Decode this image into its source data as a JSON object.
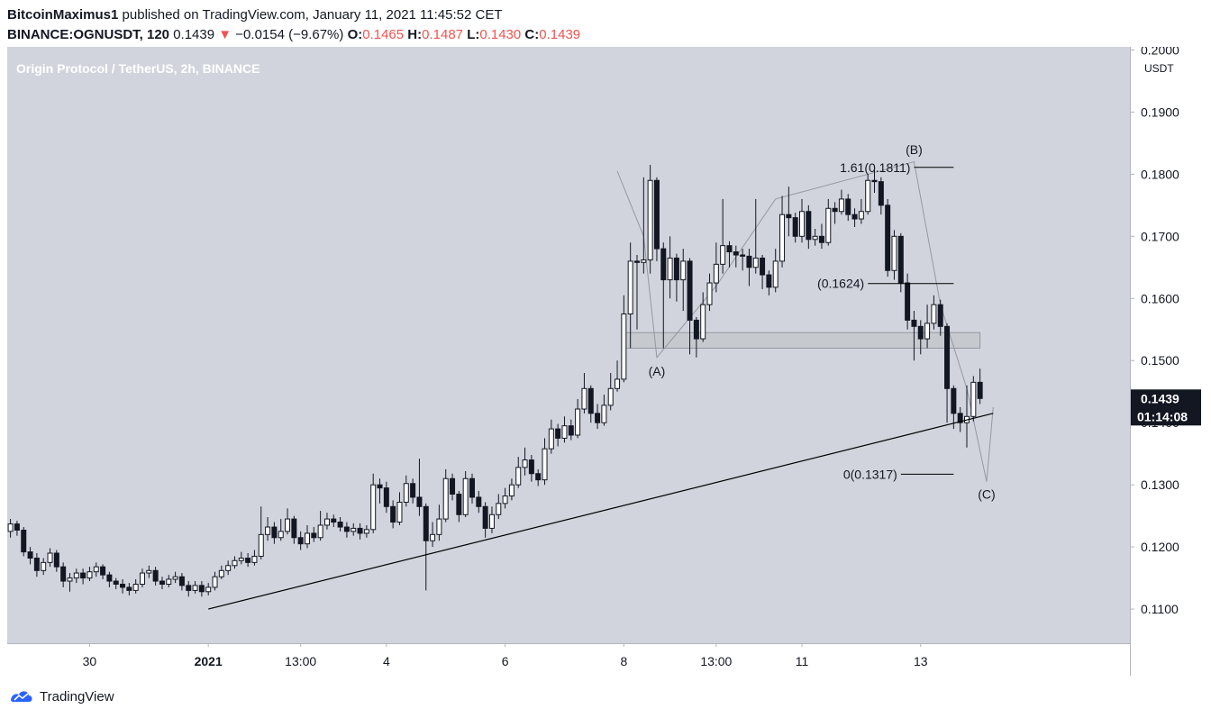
{
  "header": {
    "author": "BitcoinMaximus1",
    "published": "published on TradingView.com, January 11, 2021 11:45:52 CET",
    "symbol": "BINANCE:OGNUSDT, 120",
    "last": "0.1439",
    "arrow": "▼",
    "change": "−0.0154 (−9.67%)",
    "o_label": "O:",
    "o_val": "0.1465",
    "h_label": "H:",
    "h_val": "0.1487",
    "l_label": "L:",
    "l_val": "0.1430",
    "c_label": "C:",
    "c_val": "0.1439"
  },
  "footer": {
    "brand": "TradingView"
  },
  "colors": {
    "plot_bg": "#d1d4dc",
    "down": "#131722",
    "up": "#ffffff",
    "price_tag": "#131722",
    "accent_red": "#ef5350"
  },
  "chart_data": {
    "type": "candlestick",
    "title": "Origin Protocol / TetherUS, 2h, BINANCE",
    "currency": "USDT",
    "ylim": [
      0.1045,
      0.2005
    ],
    "y_ticks": [
      0.11,
      0.12,
      0.13,
      0.14,
      0.15,
      0.16,
      0.17,
      0.18,
      0.19,
      0.2
    ],
    "x_ticks": [
      {
        "label": "30",
        "index": 12
      },
      {
        "label": "2021",
        "index": 30,
        "bold": true
      },
      {
        "label": "13:00",
        "index": 44
      },
      {
        "label": "4",
        "index": 57
      },
      {
        "label": "6",
        "index": 75
      },
      {
        "label": "8",
        "index": 93
      },
      {
        "label": "13:00",
        "index": 107
      },
      {
        "label": "11",
        "index": 120
      },
      {
        "label": "13",
        "index": 138
      }
    ],
    "candles": [
      [
        0.1225,
        0.1237,
        0.1245,
        0.1215
      ],
      [
        0.1237,
        0.1227,
        0.1242,
        0.1218
      ],
      [
        0.1227,
        0.1192,
        0.1232,
        0.1185
      ],
      [
        0.1192,
        0.1182,
        0.12,
        0.1172
      ],
      [
        0.1182,
        0.1162,
        0.119,
        0.1152
      ],
      [
        0.1162,
        0.1175,
        0.1182,
        0.1155
      ],
      [
        0.1175,
        0.119,
        0.1198,
        0.1168
      ],
      [
        0.119,
        0.1168,
        0.1195,
        0.116
      ],
      [
        0.1168,
        0.1145,
        0.1175,
        0.1135
      ],
      [
        0.1145,
        0.115,
        0.1158,
        0.1128
      ],
      [
        0.115,
        0.1158,
        0.1165,
        0.1142
      ],
      [
        0.1158,
        0.115,
        0.1165,
        0.114
      ],
      [
        0.115,
        0.116,
        0.1168,
        0.1145
      ],
      [
        0.116,
        0.1168,
        0.1175,
        0.1152
      ],
      [
        0.1168,
        0.1155,
        0.1172,
        0.1148
      ],
      [
        0.1155,
        0.1145,
        0.116,
        0.1135
      ],
      [
        0.1145,
        0.114,
        0.115,
        0.1132
      ],
      [
        0.114,
        0.1135,
        0.1148,
        0.1125
      ],
      [
        0.1135,
        0.113,
        0.1142,
        0.1122
      ],
      [
        0.113,
        0.114,
        0.1148,
        0.1125
      ],
      [
        0.114,
        0.1158,
        0.1165,
        0.1135
      ],
      [
        0.1158,
        0.1162,
        0.117,
        0.115
      ],
      [
        0.1162,
        0.1145,
        0.1168,
        0.1138
      ],
      [
        0.1145,
        0.114,
        0.1152,
        0.1132
      ],
      [
        0.114,
        0.1148,
        0.1155,
        0.1135
      ],
      [
        0.1148,
        0.1152,
        0.116,
        0.1142
      ],
      [
        0.1152,
        0.1138,
        0.1158,
        0.113
      ],
      [
        0.1138,
        0.113,
        0.1145,
        0.112
      ],
      [
        0.113,
        0.1138,
        0.1145,
        0.1125
      ],
      [
        0.1138,
        0.1128,
        0.1145,
        0.112
      ],
      [
        0.1128,
        0.1135,
        0.1142,
        0.1122
      ],
      [
        0.1135,
        0.1152,
        0.116,
        0.113
      ],
      [
        0.1152,
        0.1162,
        0.117,
        0.1148
      ],
      [
        0.1162,
        0.117,
        0.1178,
        0.1155
      ],
      [
        0.117,
        0.1178,
        0.1185,
        0.1165
      ],
      [
        0.1178,
        0.1182,
        0.1192,
        0.1172
      ],
      [
        0.1182,
        0.1175,
        0.119,
        0.1168
      ],
      [
        0.1175,
        0.1185,
        0.1195,
        0.117
      ],
      [
        0.1185,
        0.122,
        0.1265,
        0.118
      ],
      [
        0.122,
        0.1232,
        0.1248,
        0.121
      ],
      [
        0.1232,
        0.1215,
        0.124,
        0.1205
      ],
      [
        0.1215,
        0.1225,
        0.1245,
        0.121
      ],
      [
        0.1225,
        0.1245,
        0.1262,
        0.122
      ],
      [
        0.1245,
        0.1215,
        0.125,
        0.1205
      ],
      [
        0.1215,
        0.1205,
        0.1225,
        0.1195
      ],
      [
        0.1205,
        0.1222,
        0.1235,
        0.1198
      ],
      [
        0.1222,
        0.1215,
        0.1232,
        0.1208
      ],
      [
        0.1215,
        0.1235,
        0.1258,
        0.121
      ],
      [
        0.1235,
        0.1245,
        0.1255,
        0.1228
      ],
      [
        0.1245,
        0.124,
        0.1252,
        0.1232
      ],
      [
        0.124,
        0.1232,
        0.1248,
        0.1225
      ],
      [
        0.1232,
        0.1225,
        0.124,
        0.1215
      ],
      [
        0.1225,
        0.123,
        0.1238,
        0.1218
      ],
      [
        0.123,
        0.1222,
        0.1238,
        0.1212
      ],
      [
        0.1222,
        0.1228,
        0.1235,
        0.1215
      ],
      [
        0.1228,
        0.13,
        0.1318,
        0.1222
      ],
      [
        0.13,
        0.1295,
        0.131,
        0.127
      ],
      [
        0.1295,
        0.1265,
        0.1305,
        0.1255
      ],
      [
        0.1265,
        0.124,
        0.1275,
        0.123
      ],
      [
        0.124,
        0.1272,
        0.1288,
        0.1235
      ],
      [
        0.1272,
        0.1302,
        0.1315,
        0.1265
      ],
      [
        0.1302,
        0.128,
        0.131,
        0.127
      ],
      [
        0.128,
        0.1265,
        0.1342,
        0.125
      ],
      [
        0.1265,
        0.121,
        0.127,
        0.113
      ],
      [
        0.121,
        0.122,
        0.124,
        0.12
      ],
      [
        0.122,
        0.1245,
        0.1268,
        0.121
      ],
      [
        0.1245,
        0.131,
        0.1325,
        0.124
      ],
      [
        0.131,
        0.1285,
        0.1318,
        0.1275
      ],
      [
        0.1285,
        0.1252,
        0.129,
        0.124
      ],
      [
        0.1252,
        0.131,
        0.1322,
        0.1248
      ],
      [
        0.131,
        0.128,
        0.1318,
        0.127
      ],
      [
        0.128,
        0.1265,
        0.129,
        0.1255
      ],
      [
        0.1265,
        0.123,
        0.1272,
        0.1215
      ],
      [
        0.123,
        0.1252,
        0.1265,
        0.1222
      ],
      [
        0.1252,
        0.127,
        0.1285,
        0.1245
      ],
      [
        0.127,
        0.1282,
        0.1295,
        0.1262
      ],
      [
        0.1282,
        0.13,
        0.131,
        0.1275
      ],
      [
        0.13,
        0.1328,
        0.1345,
        0.1295
      ],
      [
        0.1328,
        0.134,
        0.136,
        0.1315
      ],
      [
        0.134,
        0.1318,
        0.1348,
        0.1305
      ],
      [
        0.1318,
        0.1308,
        0.1325,
        0.1298
      ],
      [
        0.1308,
        0.1358,
        0.1375,
        0.13
      ],
      [
        0.1358,
        0.139,
        0.1405,
        0.135
      ],
      [
        0.139,
        0.1375,
        0.1398,
        0.1362
      ],
      [
        0.1375,
        0.1395,
        0.141,
        0.1368
      ],
      [
        0.1395,
        0.138,
        0.1405,
        0.1372
      ],
      [
        0.138,
        0.1422,
        0.1438,
        0.1375
      ],
      [
        0.1422,
        0.1455,
        0.148,
        0.1415
      ],
      [
        0.1455,
        0.1415,
        0.146,
        0.14
      ],
      [
        0.1415,
        0.14,
        0.143,
        0.139
      ],
      [
        0.14,
        0.1428,
        0.1445,
        0.1395
      ],
      [
        0.1428,
        0.1455,
        0.148,
        0.142
      ],
      [
        0.1455,
        0.147,
        0.15,
        0.145
      ],
      [
        0.147,
        0.1575,
        0.1605,
        0.1465
      ],
      [
        0.1575,
        0.166,
        0.169,
        0.152
      ],
      [
        0.166,
        0.1658,
        0.167,
        0.155
      ],
      [
        0.1658,
        0.1662,
        0.1795,
        0.164
      ],
      [
        0.1662,
        0.179,
        0.1815,
        0.164
      ],
      [
        0.179,
        0.168,
        0.1795,
        0.166
      ],
      [
        0.168,
        0.163,
        0.169,
        0.152
      ],
      [
        0.163,
        0.1665,
        0.17,
        0.16
      ],
      [
        0.1665,
        0.163,
        0.1672,
        0.1595
      ],
      [
        0.163,
        0.166,
        0.168,
        0.158
      ],
      [
        0.166,
        0.1565,
        0.1665,
        0.151
      ],
      [
        0.1565,
        0.1535,
        0.157,
        0.1505
      ],
      [
        0.1535,
        0.159,
        0.161,
        0.153
      ],
      [
        0.159,
        0.1625,
        0.164,
        0.158
      ],
      [
        0.1625,
        0.1655,
        0.169,
        0.161
      ],
      [
        0.1655,
        0.1685,
        0.176,
        0.164
      ],
      [
        0.1685,
        0.1675,
        0.1692,
        0.165
      ],
      [
        0.1675,
        0.167,
        0.1685,
        0.165
      ],
      [
        0.167,
        0.1668,
        0.168,
        0.1645
      ],
      [
        0.1668,
        0.165,
        0.168,
        0.162
      ],
      [
        0.165,
        0.1665,
        0.176,
        0.164
      ],
      [
        0.1665,
        0.1638,
        0.167,
        0.1615
      ],
      [
        0.1638,
        0.1618,
        0.1645,
        0.1605
      ],
      [
        0.1618,
        0.166,
        0.168,
        0.161
      ],
      [
        0.166,
        0.1735,
        0.1765,
        0.165
      ],
      [
        0.1735,
        0.173,
        0.178,
        0.17
      ],
      [
        0.173,
        0.17,
        0.1738,
        0.169
      ],
      [
        0.17,
        0.174,
        0.176,
        0.169
      ],
      [
        0.174,
        0.1695,
        0.175,
        0.168
      ],
      [
        0.1695,
        0.17,
        0.1712,
        0.1685
      ],
      [
        0.17,
        0.169,
        0.172,
        0.168
      ],
      [
        0.169,
        0.1745,
        0.176,
        0.1685
      ],
      [
        0.1745,
        0.174,
        0.1755,
        0.172
      ],
      [
        0.174,
        0.176,
        0.1775,
        0.1735
      ],
      [
        0.176,
        0.1735,
        0.1768,
        0.1725
      ],
      [
        0.1735,
        0.1728,
        0.1745,
        0.1715
      ],
      [
        0.1728,
        0.174,
        0.176,
        0.172
      ],
      [
        0.174,
        0.179,
        0.18,
        0.1735
      ],
      [
        0.179,
        0.1788,
        0.1812,
        0.177
      ],
      [
        0.1788,
        0.175,
        0.1795,
        0.1735
      ],
      [
        0.175,
        0.1645,
        0.176,
        0.1635
      ],
      [
        0.1645,
        0.17,
        0.171,
        0.163
      ],
      [
        0.17,
        0.1625,
        0.1705,
        0.161
      ],
      [
        0.1625,
        0.1565,
        0.164,
        0.155
      ],
      [
        0.1565,
        0.1555,
        0.158,
        0.15
      ],
      [
        0.1555,
        0.1535,
        0.1565,
        0.151
      ],
      [
        0.1535,
        0.156,
        0.159,
        0.152
      ],
      [
        0.156,
        0.159,
        0.1605,
        0.155
      ],
      [
        0.159,
        0.1555,
        0.1598,
        0.154
      ],
      [
        0.1555,
        0.1455,
        0.156,
        0.14
      ],
      [
        0.1455,
        0.1415,
        0.146,
        0.139
      ],
      [
        0.1415,
        0.14,
        0.1425,
        0.1385
      ],
      [
        0.14,
        0.141,
        0.146,
        0.136
      ],
      [
        0.141,
        0.1465,
        0.1475,
        0.1402
      ],
      [
        0.1465,
        0.1439,
        0.1487,
        0.143
      ]
    ],
    "overlays": {
      "support_zone": {
        "from_index": 93,
        "to_index": 147,
        "low": 0.152,
        "high": 0.1545
      },
      "trendline": {
        "from": [
          30,
          0.11
        ],
        "to": [
          149,
          0.1415
        ]
      },
      "fib_levels": [
        {
          "label": "1.61(0.1811)",
          "value": 0.1811,
          "from_index": 137,
          "to_index": 143
        },
        {
          "label": "(0.1624)",
          "value": 0.1624,
          "from_index": 130,
          "to_index": 143
        },
        {
          "label": "0(0.1317)",
          "value": 0.1317,
          "from_index": 135,
          "to_index": 143
        }
      ],
      "wave_labels": [
        {
          "text": "(A)",
          "index": 98,
          "value": 0.1483
        },
        {
          "text": "(B)",
          "index": 137,
          "value": 0.184
        },
        {
          "text": "(C)",
          "index": 148,
          "value": 0.1285
        }
      ],
      "wave_path": [
        [
          92,
          0.1805
        ],
        [
          96,
          0.17
        ],
        [
          98,
          0.1505
        ],
        [
          107,
          0.162
        ],
        [
          116,
          0.176
        ],
        [
          137,
          0.182
        ],
        [
          141,
          0.159
        ],
        [
          145,
          0.1455
        ],
        [
          148,
          0.1305
        ],
        [
          149,
          0.1425
        ]
      ]
    },
    "price_tag": "0.1439",
    "countdown": "01:14:08"
  }
}
